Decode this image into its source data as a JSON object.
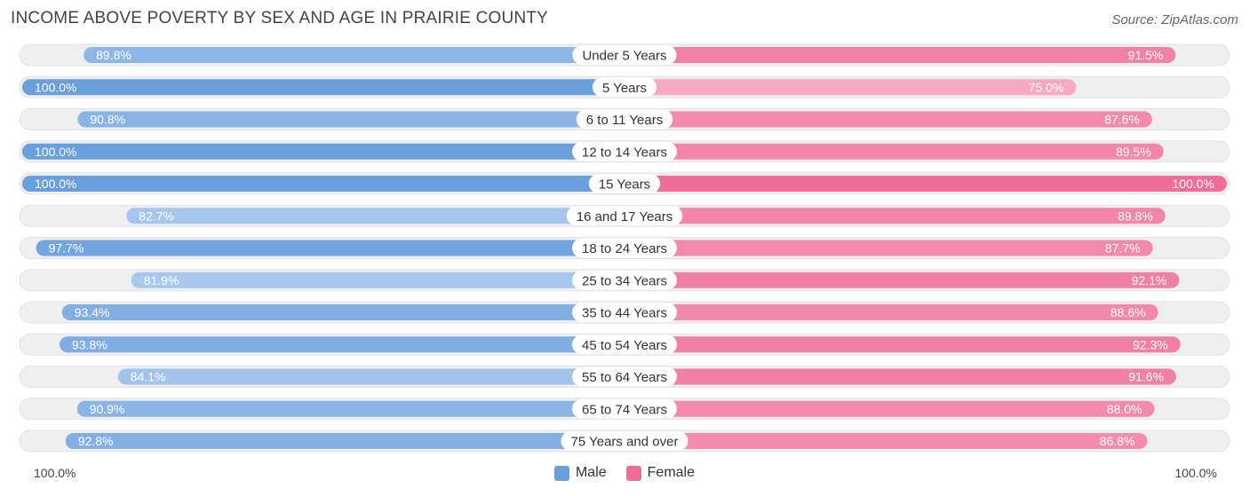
{
  "title": "INCOME ABOVE POVERTY BY SEX AND AGE IN PRAIRIE COUNTY",
  "source": "Source: ZipAtlas.com",
  "colors": {
    "male_strong": "#6a9fdd",
    "male_light": "#a9c8ee",
    "female_strong": "#f06c98",
    "female_light": "#f7a9c3",
    "track": "#efefef"
  },
  "axis": {
    "left_label": "100.0%",
    "right_label": "100.0%"
  },
  "legend": {
    "male": "Male",
    "female": "Female"
  },
  "chart_data": {
    "type": "bar",
    "orientation": "horizontal-diverging",
    "title": "INCOME ABOVE POVERTY BY SEX AND AGE IN PRAIRIE COUNTY",
    "categories": [
      "Under 5 Years",
      "5 Years",
      "6 to 11 Years",
      "12 to 14 Years",
      "15 Years",
      "16 and 17 Years",
      "18 to 24 Years",
      "25 to 34 Years",
      "35 to 44 Years",
      "45 to 54 Years",
      "55 to 64 Years",
      "65 to 74 Years",
      "75 Years and over"
    ],
    "series": [
      {
        "name": "Male",
        "values": [
          89.8,
          100.0,
          90.8,
          100.0,
          100.0,
          82.7,
          97.7,
          81.9,
          93.4,
          93.8,
          84.1,
          90.9,
          92.8
        ],
        "labels": [
          "89.8%",
          "100.0%",
          "90.8%",
          "100.0%",
          "100.0%",
          "82.7%",
          "97.7%",
          "81.9%",
          "93.4%",
          "93.8%",
          "84.1%",
          "90.9%",
          "92.8%"
        ]
      },
      {
        "name": "Female",
        "values": [
          91.5,
          75.0,
          87.6,
          89.5,
          100.0,
          89.8,
          87.7,
          92.1,
          88.6,
          92.3,
          91.6,
          88.0,
          86.8
        ],
        "labels": [
          "91.5%",
          "75.0%",
          "87.6%",
          "89.5%",
          "100.0%",
          "89.8%",
          "87.7%",
          "92.1%",
          "88.6%",
          "92.3%",
          "91.6%",
          "88.0%",
          "86.8%"
        ]
      }
    ],
    "xlim": [
      0,
      100
    ],
    "legend_position": "bottom-center"
  }
}
